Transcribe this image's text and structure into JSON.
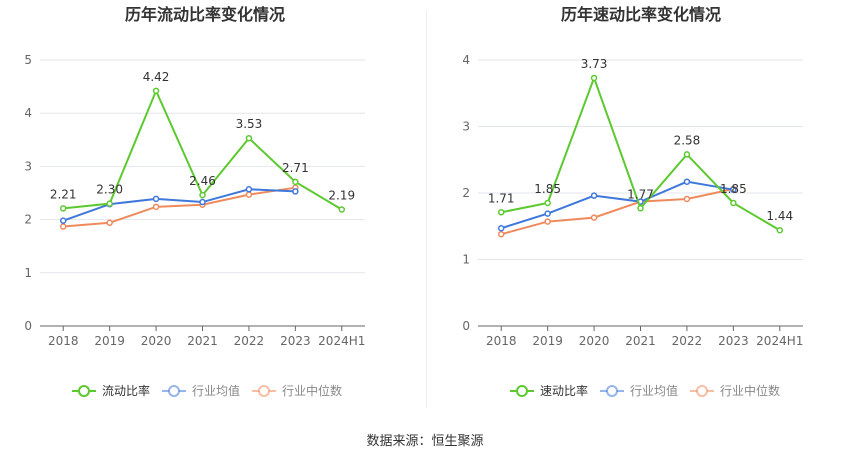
{
  "source_text": "数据来源：恒生聚源",
  "chart_data": [
    {
      "type": "line",
      "title": "历年流动比率变化情况",
      "categories": [
        "2018",
        "2019",
        "2020",
        "2021",
        "2022",
        "2023",
        "2024H1"
      ],
      "ylim": [
        0,
        5
      ],
      "yticks": [
        "0",
        "1",
        "2",
        "3",
        "4",
        "5"
      ],
      "grid": true,
      "legend_position": "bottom",
      "series": [
        {
          "name": "流动比率",
          "color": "#5cc92f",
          "values": [
            2.21,
            2.3,
            4.42,
            2.46,
            3.53,
            2.71,
            2.19
          ],
          "labels": [
            "2.21",
            "2.30",
            "4.42",
            "2.46",
            "3.53",
            "2.71",
            "2.19"
          ]
        },
        {
          "name": "行业均值",
          "color": "#3f78db",
          "values": [
            1.98,
            2.29,
            2.39,
            2.33,
            2.57,
            2.53,
            null
          ]
        },
        {
          "name": "行业中位数",
          "color": "#ef8a5d",
          "values": [
            1.87,
            1.94,
            2.24,
            2.28,
            2.47,
            2.6,
            null
          ]
        }
      ]
    },
    {
      "type": "line",
      "title": "历年速动比率变化情况",
      "categories": [
        "2018",
        "2019",
        "2020",
        "2021",
        "2022",
        "2023",
        "2024H1"
      ],
      "ylim": [
        0,
        4
      ],
      "yticks": [
        "0",
        "1",
        "2",
        "3",
        "4"
      ],
      "grid": true,
      "legend_position": "bottom",
      "series": [
        {
          "name": "速动比率",
          "color": "#5cc92f",
          "values": [
            1.71,
            1.85,
            3.73,
            1.77,
            2.58,
            1.85,
            1.44
          ],
          "labels": [
            "1.71",
            "1.85",
            "3.73",
            "1.77",
            "2.58",
            "1.85",
            "1.44"
          ]
        },
        {
          "name": "行业均值",
          "color": "#3f78db",
          "values": [
            1.47,
            1.69,
            1.96,
            1.87,
            2.17,
            2.05,
            null
          ]
        },
        {
          "name": "行业中位数",
          "color": "#ef8a5d",
          "values": [
            1.38,
            1.57,
            1.63,
            1.87,
            1.91,
            2.06,
            null
          ]
        }
      ]
    }
  ]
}
